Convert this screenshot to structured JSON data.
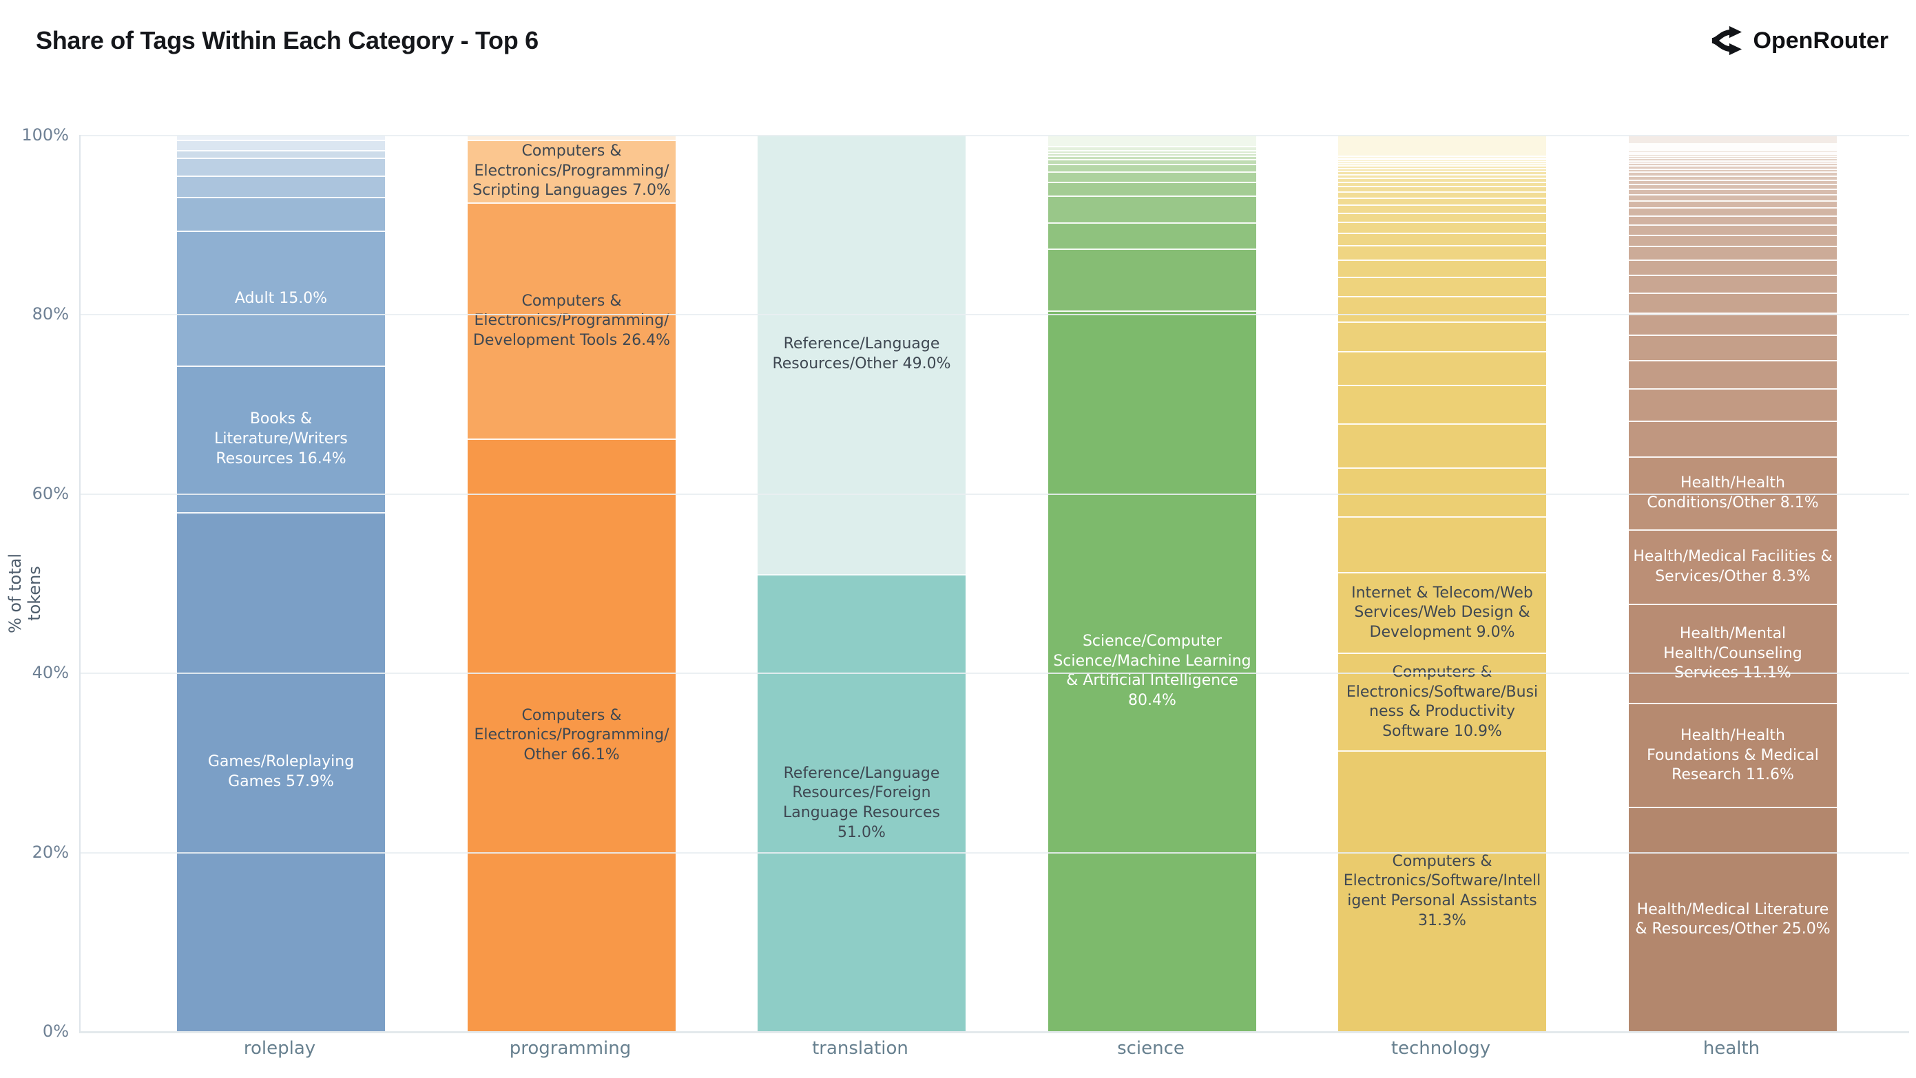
{
  "header": {
    "title": "Share of Tags Within Each Category - Top 6",
    "brand": "OpenRouter"
  },
  "y_axis": {
    "label": "% of total tokens",
    "ticks": [
      "100%",
      "80%",
      "60%",
      "40%",
      "20%",
      "0%"
    ]
  },
  "colors": {
    "dark_label": "#3f4852",
    "light_label": "#ffffff",
    "axis_text": "#6e8094",
    "title_text": "#15171b"
  },
  "chart_data": {
    "type": "bar",
    "subtype": "stacked-percent",
    "title": "Share of Tags Within Each Category - Top 6",
    "xlabel": "",
    "ylabel": "% of total tokens",
    "ylim": [
      0,
      100
    ],
    "grid": "horizontal",
    "categories": [
      "roleplay",
      "programming",
      "translation",
      "science",
      "technology",
      "health"
    ],
    "bars": [
      {
        "category": "roleplay",
        "text": "#ffffff",
        "segments": [
          {
            "v": 0.5,
            "c": "#eaf0f7",
            "label": ""
          },
          {
            "v": 1.2,
            "c": "#dbe6f1",
            "label": ""
          },
          {
            "v": 0.8,
            "c": "#cddcea",
            "label": ""
          },
          {
            "v": 2.0,
            "c": "#bcd0e4",
            "label": ""
          },
          {
            "v": 2.4,
            "c": "#abc4dd",
            "label": ""
          },
          {
            "v": 3.8,
            "c": "#9ab8d6",
            "label": ""
          },
          {
            "v": 15.0,
            "c": "#8fb0d2",
            "label": "Adult 15.0%"
          },
          {
            "v": 16.4,
            "c": "#83a7cc",
            "label": "Books & Literature/Writers Resources 16.4%"
          },
          {
            "v": 57.9,
            "c": "#7b9fc6",
            "label": "Games/Roleplaying Games 57.9%"
          }
        ]
      },
      {
        "category": "programming",
        "text": "#3f4852",
        "segments": [
          {
            "v": 0.5,
            "c": "#fdeedd",
            "label": ""
          },
          {
            "v": 7.0,
            "c": "#fbc68f",
            "label": "Computers & Electronics/Programming/Scripting Languages 7.0%"
          },
          {
            "v": 26.4,
            "c": "#f9a75f",
            "label": "Computers & Electronics/Programming/Development Tools 26.4%"
          },
          {
            "v": 66.1,
            "c": "#f89848",
            "label": "Computers & Electronics/Programming/Other 66.1%"
          }
        ]
      },
      {
        "category": "translation",
        "text": "#3f4852",
        "segments": [
          {
            "v": 49.0,
            "c": "#ddeeec",
            "label": "Reference/Language Resources/Other 49.0%"
          },
          {
            "v": 51.0,
            "c": "#8ecdc6",
            "label": "Reference/Language Resources/Foreign Language Resources 51.0%"
          }
        ]
      },
      {
        "category": "science",
        "text": "#ffffff",
        "segments": [
          {
            "v": 1.2,
            "c": "#f0f7ec",
            "label": ""
          },
          {
            "v": 0.5,
            "c": "#e4f0dd",
            "label": ""
          },
          {
            "v": 0.3,
            "c": "#dbebd2",
            "label": ""
          },
          {
            "v": 0.3,
            "c": "#d2e6c8",
            "label": ""
          },
          {
            "v": 0.4,
            "c": "#c9e1bd",
            "label": ""
          },
          {
            "v": 0.5,
            "c": "#c0dcb3",
            "label": ""
          },
          {
            "v": 0.9,
            "c": "#b6d7a8",
            "label": ""
          },
          {
            "v": 1.1,
            "c": "#add29e",
            "label": ""
          },
          {
            "v": 1.6,
            "c": "#a3cc93",
            "label": ""
          },
          {
            "v": 3.0,
            "c": "#99c789",
            "label": ""
          },
          {
            "v": 2.9,
            "c": "#8fc27e",
            "label": ""
          },
          {
            "v": 6.9,
            "c": "#86bd74",
            "label": ""
          },
          {
            "v": 80.4,
            "c": "#7dba6c",
            "label": "Science/Computer Science/Machine Learning & Artificial Intelligence 80.4%"
          }
        ]
      },
      {
        "category": "technology",
        "text": "#3f4852",
        "segments": [
          {
            "v": 2.3,
            "c": "#fcf7e2",
            "label": ""
          },
          {
            "v": 0.2,
            "c": "#faf3d6",
            "label": ""
          },
          {
            "v": 0.2,
            "c": "#f9f0cd",
            "label": ""
          },
          {
            "v": 0.2,
            "c": "#f8eec6",
            "label": ""
          },
          {
            "v": 0.25,
            "c": "#f7ecc0",
            "label": ""
          },
          {
            "v": 0.25,
            "c": "#f6eaba",
            "label": ""
          },
          {
            "v": 0.3,
            "c": "#f6e8b5",
            "label": ""
          },
          {
            "v": 0.3,
            "c": "#f5e6b0",
            "label": ""
          },
          {
            "v": 0.35,
            "c": "#f4e4ab",
            "label": ""
          },
          {
            "v": 0.4,
            "c": "#f4e3a7",
            "label": ""
          },
          {
            "v": 0.45,
            "c": "#f3e1a2",
            "label": ""
          },
          {
            "v": 0.5,
            "c": "#f3e09e",
            "label": ""
          },
          {
            "v": 0.6,
            "c": "#f2de9a",
            "label": ""
          },
          {
            "v": 0.7,
            "c": "#f2dd96",
            "label": ""
          },
          {
            "v": 0.8,
            "c": "#f1db92",
            "label": ""
          },
          {
            "v": 0.9,
            "c": "#f1da8f",
            "label": ""
          },
          {
            "v": 1.0,
            "c": "#f0d98b",
            "label": ""
          },
          {
            "v": 1.2,
            "c": "#f0d888",
            "label": ""
          },
          {
            "v": 1.4,
            "c": "#efd685",
            "label": ""
          },
          {
            "v": 1.6,
            "c": "#efd582",
            "label": ""
          },
          {
            "v": 1.9,
            "c": "#eed47f",
            "label": ""
          },
          {
            "v": 2.2,
            "c": "#eed37d",
            "label": ""
          },
          {
            "v": 2.8,
            "c": "#eed27b",
            "label": ""
          },
          {
            "v": 3.3,
            "c": "#edd179",
            "label": ""
          },
          {
            "v": 3.8,
            "c": "#edd077",
            "label": ""
          },
          {
            "v": 4.3,
            "c": "#edd075",
            "label": ""
          },
          {
            "v": 4.9,
            "c": "#eccf74",
            "label": ""
          },
          {
            "v": 5.5,
            "c": "#eccf73",
            "label": ""
          },
          {
            "v": 6.2,
            "c": "#ecce72",
            "label": ""
          },
          {
            "v": 9.0,
            "c": "#ebcd70",
            "label": "Internet & Telecom/Web Services/Web Design & Development 9.0%"
          },
          {
            "v": 10.9,
            "c": "#ebcc6f",
            "label": "Computers & Electronics/Software/Business & Productivity Software 10.9%"
          },
          {
            "v": 31.3,
            "c": "#eacb6d",
            "label": "Computers & Electronics/Software/Intelligent Personal Assistants 31.3%"
          }
        ]
      },
      {
        "category": "health",
        "text": "#ffffff",
        "segments": [
          {
            "v": 0.9,
            "c": "#f3ebe6",
            "label": ""
          },
          {
            "v": 0.15,
            "c": "#f2e9e3",
            "label": ""
          },
          {
            "v": 0.15,
            "c": "#f0e7e0",
            "label": ""
          },
          {
            "v": 0.15,
            "c": "#efe4dd",
            "label": ""
          },
          {
            "v": 0.15,
            "c": "#ede2da",
            "label": ""
          },
          {
            "v": 0.2,
            "c": "#ecdfd7",
            "label": ""
          },
          {
            "v": 0.2,
            "c": "#eaddd4",
            "label": ""
          },
          {
            "v": 0.2,
            "c": "#e9dad1",
            "label": ""
          },
          {
            "v": 0.2,
            "c": "#e7d8ce",
            "label": ""
          },
          {
            "v": 0.25,
            "c": "#e6d5cb",
            "label": ""
          },
          {
            "v": 0.25,
            "c": "#e4d3c8",
            "label": ""
          },
          {
            "v": 0.3,
            "c": "#e3d0c5",
            "label": ""
          },
          {
            "v": 0.3,
            "c": "#e1cec2",
            "label": ""
          },
          {
            "v": 0.35,
            "c": "#e0cbbf",
            "label": ""
          },
          {
            "v": 0.35,
            "c": "#dec9bc",
            "label": ""
          },
          {
            "v": 0.4,
            "c": "#ddc6b9",
            "label": ""
          },
          {
            "v": 0.45,
            "c": "#dbc4b6",
            "label": ""
          },
          {
            "v": 0.5,
            "c": "#dac1b3",
            "label": ""
          },
          {
            "v": 0.55,
            "c": "#d8bfb0",
            "label": ""
          },
          {
            "v": 0.6,
            "c": "#d7bcad",
            "label": ""
          },
          {
            "v": 0.7,
            "c": "#d5baaa",
            "label": ""
          },
          {
            "v": 0.8,
            "c": "#d4b7a7",
            "label": ""
          },
          {
            "v": 0.9,
            "c": "#d2b5a4",
            "label": ""
          },
          {
            "v": 1.0,
            "c": "#d1b2a1",
            "label": ""
          },
          {
            "v": 1.1,
            "c": "#cfb09e",
            "label": ""
          },
          {
            "v": 1.3,
            "c": "#ceae9b",
            "label": ""
          },
          {
            "v": 1.5,
            "c": "#ccab98",
            "label": ""
          },
          {
            "v": 1.7,
            "c": "#cba995",
            "label": ""
          },
          {
            "v": 2.0,
            "c": "#c9a692",
            "label": ""
          },
          {
            "v": 2.2,
            "c": "#c8a48f",
            "label": ""
          },
          {
            "v": 2.5,
            "c": "#c6a18c",
            "label": ""
          },
          {
            "v": 2.8,
            "c": "#c59f89",
            "label": ""
          },
          {
            "v": 3.2,
            "c": "#c39c86",
            "label": ""
          },
          {
            "v": 3.6,
            "c": "#c29a83",
            "label": ""
          },
          {
            "v": 4.0,
            "c": "#c09780",
            "label": ""
          },
          {
            "v": 8.1,
            "c": "#bd9279",
            "label": "Health/Health Conditions/Other 8.1%"
          },
          {
            "v": 8.3,
            "c": "#bb8f76",
            "label": "Health/Medical Facilities & Services/Other 8.3%"
          },
          {
            "v": 11.1,
            "c": "#b88c73",
            "label": "Health/Mental Health/Counseling Services 11.1%"
          },
          {
            "v": 11.6,
            "c": "#b68a70",
            "label": "Health/Health Foundations & Medical Research 11.6%"
          },
          {
            "v": 25.0,
            "c": "#b3876d",
            "label": "Health/Medical Literature & Resources/Other 25.0%"
          }
        ]
      }
    ]
  }
}
